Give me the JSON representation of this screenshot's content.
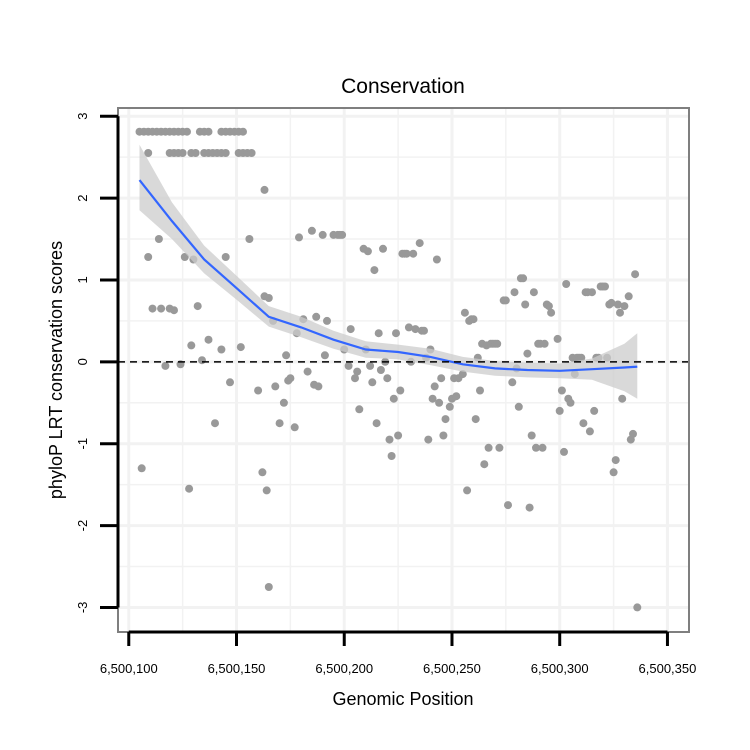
{
  "chart_data": {
    "type": "scatter",
    "title": "Conservation",
    "xlabel": "Genomic Position",
    "ylabel": "phyloP LRT conservation scores",
    "xlim": [
      6500095,
      6500360
    ],
    "ylim": [
      -3.3,
      3.1
    ],
    "x_ticks": [
      6500100,
      6500150,
      6500200,
      6500250,
      6500300,
      6500350
    ],
    "x_tick_labels": [
      "6,500,100",
      "6,500,150",
      "6,500,200",
      "6,500,250",
      "6,500,300",
      "6,500,350"
    ],
    "y_ticks": [
      -3,
      -2,
      -1,
      0,
      1,
      2,
      3
    ],
    "y_tick_labels": [
      "-3",
      "-2",
      "-1",
      "0",
      "1",
      "2",
      "3"
    ],
    "reference_line": 0,
    "colors": {
      "points": "#999999",
      "smooth_line": "#3366FF",
      "confidence_band": "#cccccc",
      "grid": "#f2f2f2",
      "frame": "#7f7f7f"
    },
    "series": [
      {
        "name": "phyloP scores",
        "points": [
          [
            6500105,
            2.81
          ],
          [
            6500107,
            2.81
          ],
          [
            6500109,
            2.81
          ],
          [
            6500111,
            2.81
          ],
          [
            6500113,
            2.81
          ],
          [
            6500115,
            2.81
          ],
          [
            6500117,
            2.81
          ],
          [
            6500119,
            2.81
          ],
          [
            6500121,
            2.81
          ],
          [
            6500123,
            2.81
          ],
          [
            6500125,
            2.81
          ],
          [
            6500127,
            2.81
          ],
          [
            6500133,
            2.81
          ],
          [
            6500135,
            2.81
          ],
          [
            6500137,
            2.81
          ],
          [
            6500143,
            2.81
          ],
          [
            6500145,
            2.81
          ],
          [
            6500147,
            2.81
          ],
          [
            6500149,
            2.81
          ],
          [
            6500151,
            2.81
          ],
          [
            6500153,
            2.81
          ],
          [
            6500109,
            2.55
          ],
          [
            6500119,
            2.55
          ],
          [
            6500121,
            2.55
          ],
          [
            6500123,
            2.55
          ],
          [
            6500125,
            2.55
          ],
          [
            6500129,
            2.55
          ],
          [
            6500131,
            2.55
          ],
          [
            6500135,
            2.55
          ],
          [
            6500137,
            2.55
          ],
          [
            6500139,
            2.55
          ],
          [
            6500141,
            2.55
          ],
          [
            6500143,
            2.55
          ],
          [
            6500145,
            2.55
          ],
          [
            6500151,
            2.55
          ],
          [
            6500153,
            2.55
          ],
          [
            6500155,
            2.55
          ],
          [
            6500157,
            2.55
          ],
          [
            6500163,
            2.1
          ],
          [
            6500106,
            -1.3
          ],
          [
            6500109,
            1.28
          ],
          [
            6500111,
            0.65
          ],
          [
            6500114,
            1.5
          ],
          [
            6500115,
            0.65
          ],
          [
            6500117,
            -0.05
          ],
          [
            6500119,
            0.65
          ],
          [
            6500121,
            0.63
          ],
          [
            6500124,
            -0.03
          ],
          [
            6500126,
            1.28
          ],
          [
            6500128,
            -1.55
          ],
          [
            6500129,
            0.2
          ],
          [
            6500130,
            1.25
          ],
          [
            6500132,
            0.68
          ],
          [
            6500134,
            0.02
          ],
          [
            6500137,
            0.27
          ],
          [
            6500140,
            -0.75
          ],
          [
            6500143,
            0.15
          ],
          [
            6500145,
            1.28
          ],
          [
            6500147,
            -0.25
          ],
          [
            6500152,
            0.18
          ],
          [
            6500156,
            1.5
          ],
          [
            6500160,
            -0.35
          ],
          [
            6500162,
            -1.35
          ],
          [
            6500164,
            -1.57
          ],
          [
            6500165,
            -2.75
          ],
          [
            6500163,
            0.8
          ],
          [
            6500165,
            0.78
          ],
          [
            6500167,
            0.5
          ],
          [
            6500168,
            -0.3
          ],
          [
            6500170,
            -0.75
          ],
          [
            6500172,
            -0.5
          ],
          [
            6500173,
            0.08
          ],
          [
            6500174,
            -0.23
          ],
          [
            6500175,
            -0.2
          ],
          [
            6500177,
            -0.8
          ],
          [
            6500178,
            0.35
          ],
          [
            6500179,
            1.52
          ],
          [
            6500181,
            0.52
          ],
          [
            6500183,
            -0.12
          ],
          [
            6500185,
            1.6
          ],
          [
            6500186,
            -0.28
          ],
          [
            6500187,
            0.55
          ],
          [
            6500188,
            -0.3
          ],
          [
            6500190,
            1.55
          ],
          [
            6500191,
            0.08
          ],
          [
            6500192,
            0.5
          ],
          [
            6500195,
            1.55
          ],
          [
            6500197,
            1.55
          ],
          [
            6500198,
            1.55
          ],
          [
            6500199,
            1.55
          ],
          [
            6500200,
            0.15
          ],
          [
            6500202,
            -0.05
          ],
          [
            6500203,
            0.4
          ],
          [
            6500205,
            -0.2
          ],
          [
            6500206,
            -0.12
          ],
          [
            6500207,
            -0.58
          ],
          [
            6500209,
            1.38
          ],
          [
            6500210,
            0.15
          ],
          [
            6500211,
            1.35
          ],
          [
            6500212,
            -0.05
          ],
          [
            6500213,
            -0.25
          ],
          [
            6500214,
            1.12
          ],
          [
            6500215,
            -0.75
          ],
          [
            6500216,
            0.35
          ],
          [
            6500217,
            -0.1
          ],
          [
            6500218,
            1.38
          ],
          [
            6500219,
            0.0
          ],
          [
            6500220,
            -0.2
          ],
          [
            6500221,
            -0.95
          ],
          [
            6500222,
            -1.15
          ],
          [
            6500223,
            -0.45
          ],
          [
            6500224,
            0.35
          ],
          [
            6500225,
            -0.9
          ],
          [
            6500226,
            -0.35
          ],
          [
            6500227,
            1.32
          ],
          [
            6500228,
            1.32
          ],
          [
            6500229,
            1.32
          ],
          [
            6500230,
            0.42
          ],
          [
            6500231,
            0.0
          ],
          [
            6500232,
            1.32
          ],
          [
            6500233,
            0.4
          ],
          [
            6500235,
            1.45
          ],
          [
            6500236,
            0.38
          ],
          [
            6500237,
            0.38
          ],
          [
            6500238,
            0.05
          ],
          [
            6500239,
            -0.95
          ],
          [
            6500240,
            0.15
          ],
          [
            6500241,
            -0.45
          ],
          [
            6500242,
            -0.3
          ],
          [
            6500243,
            1.25
          ],
          [
            6500244,
            -0.5
          ],
          [
            6500245,
            -0.2
          ],
          [
            6500246,
            -0.9
          ],
          [
            6500247,
            -0.7
          ],
          [
            6500249,
            -0.55
          ],
          [
            6500250,
            -0.45
          ],
          [
            6500251,
            -0.2
          ],
          [
            6500252,
            -0.42
          ],
          [
            6500253,
            -0.2
          ],
          [
            6500255,
            -0.15
          ],
          [
            6500256,
            0.6
          ],
          [
            6500257,
            -1.57
          ],
          [
            6500258,
            0.5
          ],
          [
            6500259,
            0.52
          ],
          [
            6500260,
            0.52
          ],
          [
            6500261,
            -0.7
          ],
          [
            6500262,
            0.05
          ],
          [
            6500263,
            -0.35
          ],
          [
            6500264,
            0.22
          ],
          [
            6500265,
            -1.25
          ],
          [
            6500266,
            0.2
          ],
          [
            6500267,
            -1.05
          ],
          [
            6500268,
            0.22
          ],
          [
            6500269,
            0.22
          ],
          [
            6500270,
            0.22
          ],
          [
            6500271,
            0.22
          ],
          [
            6500272,
            -1.05
          ],
          [
            6500274,
            0.75
          ],
          [
            6500275,
            0.75
          ],
          [
            6500276,
            -1.75
          ],
          [
            6500278,
            -0.25
          ],
          [
            6500279,
            0.85
          ],
          [
            6500280,
            -0.08
          ],
          [
            6500281,
            -0.55
          ],
          [
            6500282,
            1.02
          ],
          [
            6500283,
            1.02
          ],
          [
            6500284,
            0.7
          ],
          [
            6500285,
            0.1
          ],
          [
            6500286,
            -1.78
          ],
          [
            6500287,
            -0.9
          ],
          [
            6500288,
            0.85
          ],
          [
            6500289,
            -1.05
          ],
          [
            6500290,
            0.22
          ],
          [
            6500291,
            0.22
          ],
          [
            6500292,
            -1.05
          ],
          [
            6500293,
            0.22
          ],
          [
            6500294,
            0.7
          ],
          [
            6500295,
            0.68
          ],
          [
            6500296,
            0.6
          ],
          [
            6500299,
            0.28
          ],
          [
            6500300,
            -0.6
          ],
          [
            6500301,
            -0.35
          ],
          [
            6500302,
            -1.1
          ],
          [
            6500303,
            0.95
          ],
          [
            6500304,
            -0.45
          ],
          [
            6500305,
            -0.5
          ],
          [
            6500306,
            0.05
          ],
          [
            6500307,
            -0.15
          ],
          [
            6500308,
            0.05
          ],
          [
            6500309,
            0.05
          ],
          [
            6500310,
            0.05
          ],
          [
            6500311,
            -0.75
          ],
          [
            6500312,
            0.85
          ],
          [
            6500313,
            0.85
          ],
          [
            6500314,
            -0.85
          ],
          [
            6500315,
            0.85
          ],
          [
            6500316,
            -0.6
          ],
          [
            6500317,
            0.05
          ],
          [
            6500318,
            0.05
          ],
          [
            6500319,
            0.92
          ],
          [
            6500320,
            0.92
          ],
          [
            6500321,
            0.92
          ],
          [
            6500322,
            0.05
          ],
          [
            6500323,
            0.7
          ],
          [
            6500324,
            0.72
          ],
          [
            6500325,
            -1.35
          ],
          [
            6500326,
            -1.2
          ],
          [
            6500327,
            0.7
          ],
          [
            6500328,
            0.6
          ],
          [
            6500329,
            -0.45
          ],
          [
            6500330,
            0.68
          ],
          [
            6500332,
            0.8
          ],
          [
            6500333,
            -0.95
          ],
          [
            6500334,
            -0.88
          ],
          [
            6500335,
            1.07
          ],
          [
            6500336,
            -3.0
          ]
        ]
      },
      {
        "name": "loess smooth",
        "x": [
          6500105,
          6500120,
          6500135,
          6500150,
          6500165,
          6500180,
          6500195,
          6500210,
          6500225,
          6500240,
          6500255,
          6500270,
          6500285,
          6500300,
          6500315,
          6500330,
          6500336
        ],
        "y": [
          2.22,
          1.72,
          1.25,
          0.9,
          0.55,
          0.42,
          0.27,
          0.15,
          0.12,
          0.06,
          -0.03,
          -0.08,
          -0.1,
          -0.11,
          -0.09,
          -0.07,
          -0.06
        ],
        "lower": [
          1.85,
          1.5,
          1.08,
          0.76,
          0.43,
          0.3,
          0.16,
          0.05,
          0.03,
          -0.04,
          -0.12,
          -0.17,
          -0.19,
          -0.2,
          -0.22,
          -0.36,
          -0.45
        ],
        "upper": [
          2.65,
          1.95,
          1.42,
          1.05,
          0.68,
          0.55,
          0.38,
          0.25,
          0.21,
          0.16,
          0.06,
          0.01,
          -0.01,
          -0.02,
          0.04,
          0.22,
          0.35
        ]
      }
    ]
  }
}
